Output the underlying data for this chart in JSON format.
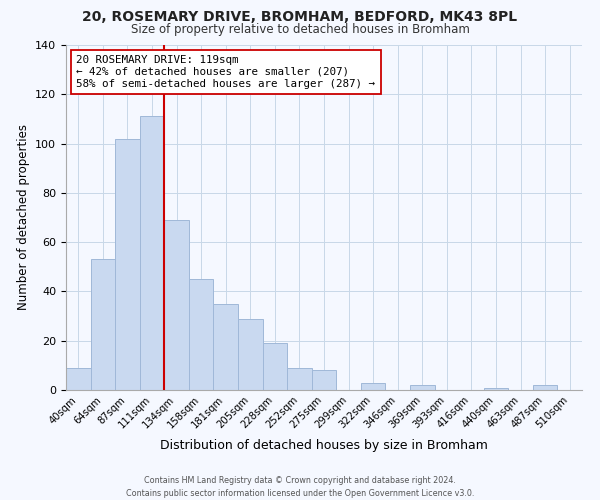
{
  "title": "20, ROSEMARY DRIVE, BROMHAM, BEDFORD, MK43 8PL",
  "subtitle": "Size of property relative to detached houses in Bromham",
  "xlabel": "Distribution of detached houses by size in Bromham",
  "ylabel": "Number of detached properties",
  "bar_labels": [
    "40sqm",
    "64sqm",
    "87sqm",
    "111sqm",
    "134sqm",
    "158sqm",
    "181sqm",
    "205sqm",
    "228sqm",
    "252sqm",
    "275sqm",
    "299sqm",
    "322sqm",
    "346sqm",
    "369sqm",
    "393sqm",
    "416sqm",
    "440sqm",
    "463sqm",
    "487sqm",
    "510sqm"
  ],
  "bar_values": [
    9,
    53,
    102,
    111,
    69,
    45,
    35,
    29,
    19,
    9,
    8,
    0,
    3,
    0,
    2,
    0,
    0,
    1,
    0,
    2,
    0
  ],
  "bar_color": "#c9d9f0",
  "bar_edge_color": "#a0b8d8",
  "vline_index": 3.5,
  "vline_color": "#cc0000",
  "ylim": [
    0,
    140
  ],
  "annotation_title": "20 ROSEMARY DRIVE: 119sqm",
  "annotation_line1": "← 42% of detached houses are smaller (207)",
  "annotation_line2": "58% of semi-detached houses are larger (287) →",
  "annotation_box_color": "#ffffff",
  "annotation_box_edge": "#cc0000",
  "footer": "Contains HM Land Registry data © Crown copyright and database right 2024.\nContains public sector information licensed under the Open Government Licence v3.0.",
  "background_color": "#f5f8ff",
  "grid_color": "#c8d8e8"
}
